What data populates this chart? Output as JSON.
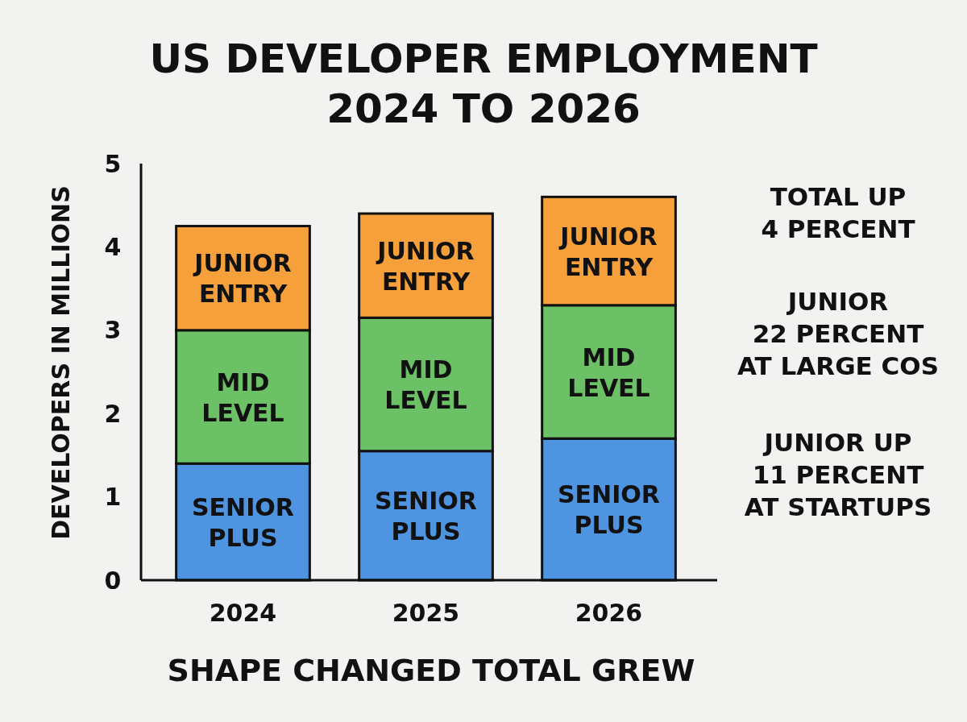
{
  "chart_data": {
    "type": "bar",
    "stacked": true,
    "title": "US DEVELOPER EMPLOYMENT\n2024 TO 2026",
    "ylabel": "DEVELOPERS IN MILLIONS",
    "xlabel": "SHAPE CHANGED TOTAL GREW",
    "categories": [
      "2024",
      "2025",
      "2026"
    ],
    "series": [
      {
        "name": "SENIOR PLUS",
        "color": "#4f94e0",
        "values": [
          1.4,
          1.55,
          1.7
        ]
      },
      {
        "name": "MID LEVEL",
        "color": "#6cc065",
        "values": [
          1.6,
          1.6,
          1.6
        ]
      },
      {
        "name": "JUNIOR ENTRY",
        "color": "#f5a03a",
        "values": [
          1.25,
          1.25,
          1.3
        ]
      }
    ],
    "ylim": [
      0,
      5
    ],
    "yticks": [
      0,
      1,
      2,
      3,
      4,
      5
    ],
    "grid": false,
    "legend": false,
    "annotations": [
      "TOTAL UP\n4 PERCENT",
      "JUNIOR\n22 PERCENT\nAT LARGE COS",
      "JUNIOR UP\n11 PERCENT\nAT STARTUPS"
    ]
  }
}
